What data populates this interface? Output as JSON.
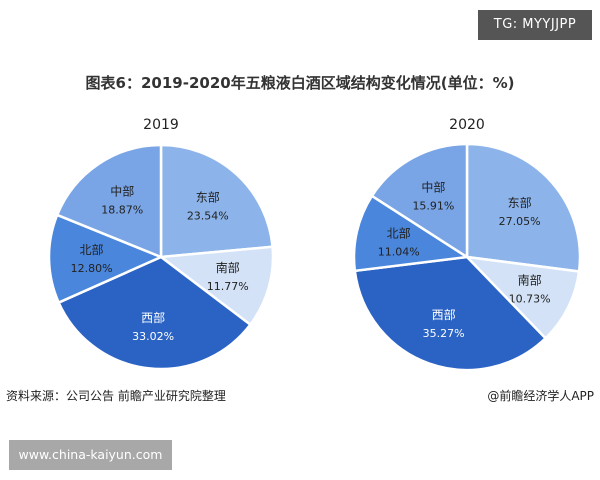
{
  "badge": "TG: MYYJJPP",
  "chart_data": {
    "type": "pie",
    "title": "图表6：2019-2020年五粮液白酒区域结构变化情况(单位：%)",
    "categories": [
      "东部",
      "南部",
      "西部",
      "北部",
      "中部"
    ],
    "colors": [
      "#8db4ea",
      "#d3e2f7",
      "#2b63c4",
      "#4a86dc",
      "#79a5e6"
    ],
    "label_colors": [
      "#222222",
      "#222222",
      "#ffffff",
      "#222222",
      "#222222"
    ],
    "charts": [
      {
        "subtitle": "2019",
        "values": [
          23.54,
          11.77,
          33.02,
          12.8,
          18.87
        ],
        "labels": [
          "23.54%",
          "11.77%",
          "33.02%",
          "12.80%",
          "18.87%"
        ]
      },
      {
        "subtitle": "2020",
        "values": [
          27.05,
          10.73,
          35.27,
          11.04,
          15.91
        ],
        "labels": [
          "27.05%",
          "10.73%",
          "35.27%",
          "11.04%",
          "15.91%"
        ]
      }
    ]
  },
  "footer": {
    "source": "资料来源：公司公告 前瞻产业研究院整理",
    "credit": "@前瞻经济学人APP"
  },
  "watermark": "www.china-kaiyun.com"
}
